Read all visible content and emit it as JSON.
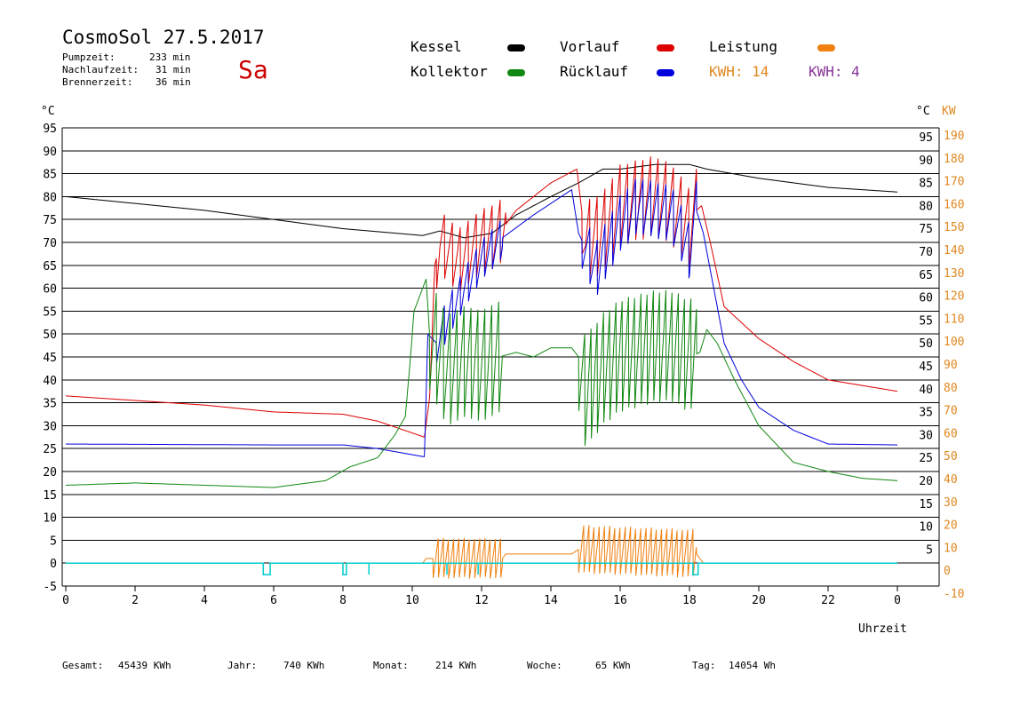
{
  "header": {
    "title": "CosmoSol 27.5.2017",
    "day": "Sa",
    "stats": [
      {
        "label": "Pumpzeit:",
        "value": "233 min"
      },
      {
        "label": "Nachlaufzeit:",
        "value": "31 min"
      },
      {
        "label": "Brennerzeit:",
        "value": "36 min"
      }
    ]
  },
  "legend": {
    "kessel": {
      "label": "Kessel",
      "color": "#000000"
    },
    "vorlauf": {
      "label": "Vorlauf",
      "color": "#dd0000"
    },
    "leistung": {
      "label": "Leistung",
      "color": "#f08010"
    },
    "kollektor": {
      "label": "Kollektor",
      "color": "#118811"
    },
    "ruecklauf": {
      "label": "Rücklauf",
      "color": "#0000dd"
    },
    "kwh1": {
      "label": "KWH: 14",
      "color": "#e08820"
    },
    "kwh2": {
      "label": "KWH: 4",
      "color": "#883399"
    }
  },
  "footer": {
    "gesamt": {
      "label": "Gesamt:",
      "value": "45439 KWh"
    },
    "jahr": {
      "label": "Jahr:",
      "value": "740 KWh"
    },
    "monat": {
      "label": "Monat:",
      "value": "214 KWh"
    },
    "woche": {
      "label": "Woche:",
      "value": "65 KWh"
    },
    "tag": {
      "label": "Tag:",
      "value": "14054 Wh"
    }
  },
  "chart_data": {
    "type": "line",
    "xlabel": "Uhrzeit",
    "xlim": [
      0,
      24
    ],
    "x_ticks": [
      "0",
      "2",
      "4",
      "6",
      "8",
      "10",
      "12",
      "14",
      "16",
      "18",
      "20",
      "22",
      "0"
    ],
    "y_left_unit": "°C",
    "y_right_units": [
      "°C",
      "KW"
    ],
    "ylim": [
      -5,
      95
    ],
    "y_left_ticks": [
      "95",
      "90",
      "85",
      "80",
      "75",
      "70",
      "65",
      "60",
      "55",
      "50",
      "45",
      "40",
      "35",
      "30",
      "25",
      "20",
      "15",
      "10",
      "5",
      "0",
      "-5"
    ],
    "y_right_c_ticks": [
      "95",
      "90",
      "85",
      "80",
      "75",
      "70",
      "65",
      "60",
      "55",
      "50",
      "45",
      "40",
      "35",
      "30",
      "25",
      "20",
      "15",
      "10",
      "5"
    ],
    "y_right_kw_ticks": [
      "190",
      "180",
      "170",
      "160",
      "150",
      "140",
      "130",
      "120",
      "110",
      "100",
      "90",
      "80",
      "70",
      "60",
      "50",
      "40",
      "30",
      "20",
      "10",
      "0",
      "-10"
    ],
    "series": [
      {
        "name": "Kessel",
        "color": "#000000",
        "base": [
          [
            0,
            80
          ],
          [
            4,
            77
          ],
          [
            8,
            73
          ],
          [
            10.3,
            71.5
          ],
          [
            10.8,
            72.5
          ],
          [
            11.5,
            71
          ],
          [
            12.3,
            72
          ],
          [
            13,
            76
          ],
          [
            14,
            80
          ],
          [
            14.8,
            83
          ],
          [
            15.5,
            86
          ],
          [
            16,
            86
          ],
          [
            17,
            87
          ],
          [
            18,
            87
          ],
          [
            18.5,
            86
          ],
          [
            20,
            84
          ],
          [
            22,
            82
          ],
          [
            24,
            81
          ]
        ],
        "osc": []
      },
      {
        "name": "Vorlauf",
        "color": "#dd0000",
        "base": [
          [
            0,
            36.5
          ],
          [
            4,
            34.5
          ],
          [
            6,
            33
          ],
          [
            8,
            32.5
          ],
          [
            9,
            31
          ],
          [
            10.35,
            27.5
          ],
          [
            10.5,
            36
          ],
          [
            10.65,
            65
          ],
          [
            10.8,
            70
          ],
          [
            11.3,
            66
          ],
          [
            12,
            70
          ],
          [
            12.5,
            72
          ],
          [
            13,
            77
          ],
          [
            14,
            83
          ],
          [
            14.75,
            86
          ],
          [
            15.0,
            70
          ],
          [
            15.5,
            72
          ],
          [
            16,
            78
          ],
          [
            17,
            80
          ],
          [
            17.5,
            78
          ],
          [
            18,
            73
          ],
          [
            18.2,
            77
          ],
          [
            18.35,
            78
          ],
          [
            18.6,
            70
          ],
          [
            19,
            56
          ],
          [
            20,
            49
          ],
          [
            21,
            44
          ],
          [
            22,
            40
          ],
          [
            24,
            37.5
          ]
        ],
        "osc": [
          [
            10.7,
            12.7,
            0.23,
            8
          ],
          [
            14.9,
            18.2,
            0.22,
            10
          ]
        ]
      },
      {
        "name": "Rücklauf",
        "color": "#0000dd",
        "base": [
          [
            0,
            26
          ],
          [
            6,
            25.8
          ],
          [
            8,
            25.8
          ],
          [
            9,
            25
          ],
          [
            10.35,
            23.2
          ],
          [
            10.45,
            50
          ],
          [
            10.7,
            48
          ],
          [
            11,
            53
          ],
          [
            11.5,
            60
          ],
          [
            12,
            66
          ],
          [
            12.6,
            71
          ],
          [
            13.5,
            76
          ],
          [
            14.6,
            81.5
          ],
          [
            14.8,
            72
          ],
          [
            15.3,
            64
          ],
          [
            16,
            74
          ],
          [
            16.5,
            78
          ],
          [
            17.5,
            76
          ],
          [
            18,
            68
          ],
          [
            18.2,
            77
          ],
          [
            18.4,
            72
          ],
          [
            19,
            48
          ],
          [
            19.5,
            40
          ],
          [
            20,
            34
          ],
          [
            21,
            29
          ],
          [
            22,
            26
          ],
          [
            24,
            25.8
          ]
        ],
        "osc": [
          [
            10.7,
            12.6,
            0.23,
            5
          ],
          [
            14.9,
            18.2,
            0.22,
            7
          ]
        ]
      },
      {
        "name": "Kollektor",
        "color": "#118811",
        "base": [
          [
            0,
            17
          ],
          [
            2,
            17.5
          ],
          [
            4,
            17
          ],
          [
            6,
            16.5
          ],
          [
            7.5,
            18
          ],
          [
            8.2,
            21
          ],
          [
            9,
            23
          ],
          [
            9.5,
            28
          ],
          [
            9.8,
            32
          ],
          [
            9.95,
            45
          ],
          [
            10.05,
            55
          ],
          [
            10.3,
            60
          ],
          [
            10.4,
            62
          ],
          [
            10.5,
            50
          ],
          [
            11,
            42
          ],
          [
            11.5,
            44
          ],
          [
            12,
            43
          ],
          [
            12.5,
            45
          ],
          [
            13,
            46
          ],
          [
            13.5,
            45
          ],
          [
            14,
            47
          ],
          [
            14.6,
            47
          ],
          [
            14.8,
            45
          ],
          [
            15,
            37
          ],
          [
            15.5,
            42
          ],
          [
            16,
            45
          ],
          [
            17,
            47
          ],
          [
            17.5,
            47
          ],
          [
            18,
            45
          ],
          [
            18.3,
            46
          ],
          [
            18.5,
            51
          ],
          [
            18.8,
            48
          ],
          [
            19.3,
            40
          ],
          [
            20,
            30
          ],
          [
            20.5,
            26
          ],
          [
            21,
            22
          ],
          [
            22,
            20
          ],
          [
            23,
            18.5
          ],
          [
            24,
            18
          ]
        ],
        "osc": [
          [
            10.5,
            12.6,
            0.2,
            14
          ],
          [
            14.8,
            18.2,
            0.18,
            14
          ]
        ]
      },
      {
        "name": "Leistung",
        "color": "#f08010",
        "base": [
          [
            10.3,
            0
          ],
          [
            10.4,
            1
          ],
          [
            12.6,
            1
          ],
          [
            12.7,
            2
          ],
          [
            14.6,
            2
          ],
          [
            14.8,
            3
          ],
          [
            18.2,
            2
          ],
          [
            18.4,
            0
          ]
        ],
        "osc": [
          [
            10.6,
            12.6,
            0.15,
            5
          ],
          [
            14.8,
            18.2,
            0.15,
            6
          ]
        ]
      }
    ],
    "pump_status": {
      "color": "#00cccc",
      "intervals": [
        [
          5.7,
          5.9
        ],
        [
          8,
          8.1
        ],
        [
          18.1,
          18.25
        ]
      ],
      "ticks": [
        8.75,
        11,
        11.9
      ]
    }
  }
}
